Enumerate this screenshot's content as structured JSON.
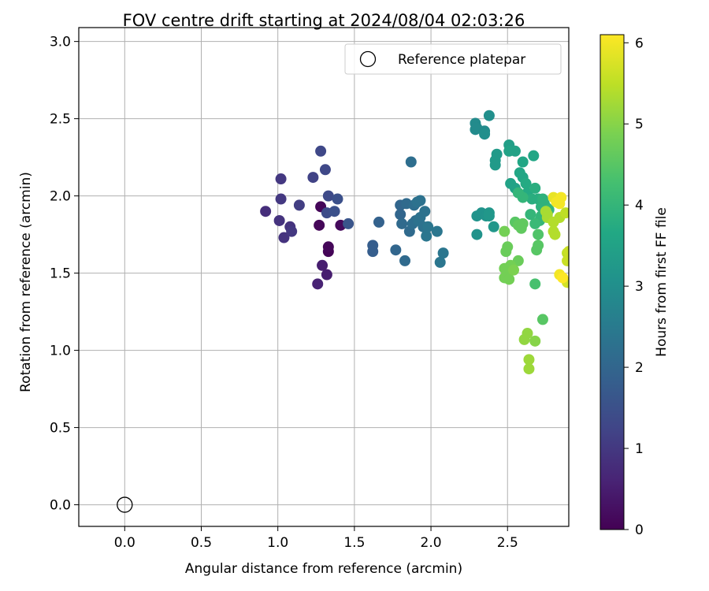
{
  "chart_data": {
    "type": "scatter",
    "title": "FOV centre drift starting at 2024/08/04 02:03:26",
    "xlabel": "Angular distance from reference (arcmin)",
    "ylabel": "Rotation from reference (arcmin)",
    "xlim": [
      -0.3,
      2.9
    ],
    "ylim": [
      -0.14,
      3.09
    ],
    "xticks": [
      0.0,
      0.5,
      1.0,
      1.5,
      2.0,
      2.5
    ],
    "xtick_labels": [
      "0.0",
      "0.5",
      "1.0",
      "1.5",
      "2.0",
      "2.5"
    ],
    "yticks": [
      0.0,
      0.5,
      1.0,
      1.5,
      2.0,
      2.5,
      3.0
    ],
    "ytick_labels": [
      "0.0",
      "0.5",
      "1.0",
      "1.5",
      "2.0",
      "2.5",
      "3.0"
    ],
    "grid": true,
    "legend": {
      "placement": "top-right",
      "entries": [
        "Reference platepar"
      ]
    },
    "reference_point": {
      "x": 0.0,
      "y": 0.0,
      "marker": "hollow-circle",
      "label": "Reference platepar"
    },
    "colorbar": {
      "label": "Hours from first FF file",
      "range": [
        0,
        6.1
      ],
      "colormap": "viridis",
      "ticks": [
        0,
        1,
        2,
        3,
        4,
        5,
        6
      ],
      "tick_labels": [
        "0",
        "1",
        "2",
        "3",
        "4",
        "5",
        "6"
      ]
    },
    "series": [
      {
        "points": [
          [
            1.28,
            1.93,
            0.1
          ],
          [
            1.33,
            1.64,
            0.05
          ],
          [
            1.33,
            1.67,
            0.1
          ],
          [
            1.27,
            1.81,
            0.1
          ],
          [
            1.41,
            1.81,
            0.15
          ],
          [
            1.29,
            1.55,
            0.5
          ],
          [
            1.32,
            1.49,
            0.5
          ],
          [
            1.26,
            1.43,
            0.6
          ],
          [
            0.92,
            1.9,
            0.8
          ],
          [
            1.01,
            1.84,
            0.9
          ],
          [
            1.04,
            1.73,
            0.9
          ],
          [
            1.08,
            1.8,
            0.9
          ],
          [
            1.09,
            1.77,
            1.0
          ],
          [
            1.02,
            1.98,
            1.0
          ],
          [
            1.02,
            2.11,
            1.0
          ],
          [
            1.14,
            1.94,
            1.1
          ],
          [
            1.23,
            2.12,
            1.2
          ],
          [
            1.28,
            2.29,
            1.3
          ],
          [
            1.31,
            2.17,
            1.3
          ],
          [
            1.33,
            2.0,
            1.35
          ],
          [
            1.32,
            1.89,
            1.4
          ],
          [
            1.37,
            1.9,
            1.5
          ],
          [
            1.39,
            1.98,
            1.5
          ],
          [
            1.46,
            1.82,
            1.6
          ],
          [
            1.62,
            1.68,
            1.8
          ],
          [
            1.62,
            1.64,
            1.8
          ],
          [
            1.66,
            1.83,
            1.9
          ],
          [
            1.77,
            1.65,
            2.0
          ],
          [
            1.8,
            1.94,
            2.0
          ],
          [
            1.8,
            1.88,
            2.0
          ],
          [
            1.81,
            1.82,
            2.1
          ],
          [
            1.83,
            1.58,
            2.1
          ],
          [
            1.84,
            1.95,
            2.1
          ],
          [
            1.86,
            1.77,
            2.1
          ],
          [
            1.87,
            2.22,
            2.2
          ],
          [
            1.88,
            1.82,
            2.2
          ],
          [
            1.89,
            1.94,
            2.2
          ],
          [
            1.9,
            1.84,
            2.2
          ],
          [
            1.91,
            1.96,
            2.3
          ],
          [
            1.93,
            1.97,
            2.3
          ],
          [
            1.92,
            1.84,
            2.3
          ],
          [
            1.93,
            1.86,
            2.3
          ],
          [
            1.95,
            1.8,
            2.3
          ],
          [
            1.96,
            1.9,
            2.3
          ],
          [
            1.97,
            1.74,
            2.4
          ],
          [
            1.98,
            1.8,
            2.4
          ],
          [
            2.04,
            1.77,
            2.4
          ],
          [
            2.06,
            1.57,
            2.4
          ],
          [
            2.08,
            1.63,
            2.4
          ],
          [
            2.29,
            2.47,
            2.9
          ],
          [
            2.29,
            2.43,
            2.9
          ],
          [
            2.3,
            2.44,
            2.9
          ],
          [
            2.35,
            2.42,
            2.9
          ],
          [
            2.35,
            2.4,
            3.0
          ],
          [
            2.38,
            2.52,
            3.0
          ],
          [
            2.3,
            1.87,
            3.1
          ],
          [
            2.33,
            1.89,
            3.1
          ],
          [
            2.36,
            1.87,
            3.1
          ],
          [
            2.3,
            1.75,
            3.1
          ],
          [
            2.38,
            1.89,
            3.2
          ],
          [
            2.38,
            1.87,
            3.2
          ],
          [
            2.41,
            1.8,
            3.2
          ],
          [
            2.43,
            2.27,
            3.3
          ],
          [
            2.42,
            2.23,
            3.3
          ],
          [
            2.42,
            2.2,
            3.3
          ],
          [
            2.51,
            2.33,
            3.4
          ],
          [
            2.51,
            2.29,
            3.5
          ],
          [
            2.55,
            2.29,
            3.5
          ],
          [
            2.52,
            2.08,
            3.5
          ],
          [
            2.55,
            2.05,
            3.5
          ],
          [
            2.58,
            2.15,
            3.6
          ],
          [
            2.6,
            2.12,
            3.6
          ],
          [
            2.6,
            2.22,
            3.6
          ],
          [
            2.67,
            2.26,
            3.6
          ],
          [
            2.62,
            2.08,
            3.7
          ],
          [
            2.63,
            2.02,
            3.7
          ],
          [
            2.66,
            1.98,
            3.8
          ],
          [
            2.68,
            2.05,
            3.8
          ],
          [
            2.7,
            1.98,
            3.8
          ],
          [
            2.72,
            1.93,
            3.9
          ],
          [
            2.73,
            1.98,
            3.9
          ],
          [
            2.74,
            1.95,
            3.9
          ],
          [
            2.76,
            1.92,
            3.9
          ],
          [
            2.77,
            1.91,
            4.0
          ],
          [
            2.72,
            1.87,
            4.0
          ],
          [
            2.71,
            1.84,
            4.0
          ],
          [
            2.68,
            1.82,
            4.1
          ],
          [
            2.65,
            1.88,
            4.0
          ],
          [
            2.6,
            1.99,
            4.0
          ],
          [
            2.57,
            2.02,
            4.0
          ],
          [
            2.7,
            1.75,
            4.4
          ],
          [
            2.7,
            1.68,
            4.5
          ],
          [
            2.69,
            1.65,
            4.5
          ],
          [
            2.68,
            1.43,
            4.3
          ],
          [
            2.73,
            1.2,
            4.5
          ],
          [
            2.55,
            1.83,
            4.5
          ],
          [
            2.57,
            1.81,
            4.6
          ],
          [
            2.6,
            1.82,
            4.6
          ],
          [
            2.59,
            1.79,
            4.6
          ],
          [
            2.5,
            1.67,
            4.7
          ],
          [
            2.49,
            1.64,
            4.7
          ],
          [
            2.57,
            1.58,
            4.7
          ],
          [
            2.48,
            1.77,
            4.8
          ],
          [
            2.52,
            1.55,
            4.8
          ],
          [
            2.53,
            1.53,
            4.8
          ],
          [
            2.48,
            1.53,
            4.8
          ],
          [
            2.5,
            1.5,
            4.8
          ],
          [
            2.48,
            1.47,
            4.8
          ],
          [
            2.51,
            1.46,
            4.8
          ],
          [
            2.54,
            1.52,
            4.9
          ],
          [
            2.63,
            1.11,
            5.1
          ],
          [
            2.61,
            1.07,
            5.1
          ],
          [
            2.68,
            1.06,
            5.0
          ],
          [
            2.64,
            0.94,
            5.2
          ],
          [
            2.64,
            0.88,
            5.2
          ],
          [
            2.75,
            1.9,
            5.3
          ],
          [
            2.76,
            1.88,
            5.3
          ],
          [
            2.76,
            1.86,
            5.3
          ],
          [
            2.8,
            1.83,
            5.4
          ],
          [
            2.8,
            1.77,
            5.4
          ],
          [
            2.81,
            1.75,
            5.4
          ],
          [
            2.84,
            1.86,
            5.4
          ],
          [
            2.88,
            1.89,
            5.5
          ],
          [
            2.89,
            1.63,
            5.5
          ],
          [
            2.89,
            1.58,
            5.6
          ],
          [
            2.9,
            1.64,
            5.6
          ],
          [
            2.89,
            1.44,
            5.7
          ],
          [
            2.8,
            1.99,
            5.9
          ],
          [
            2.82,
            1.96,
            6.0
          ],
          [
            2.85,
            1.99,
            6.0
          ],
          [
            2.84,
            1.95,
            6.0
          ],
          [
            2.84,
            1.49,
            6.0
          ],
          [
            2.86,
            1.47,
            6.1
          ]
        ]
      }
    ]
  }
}
